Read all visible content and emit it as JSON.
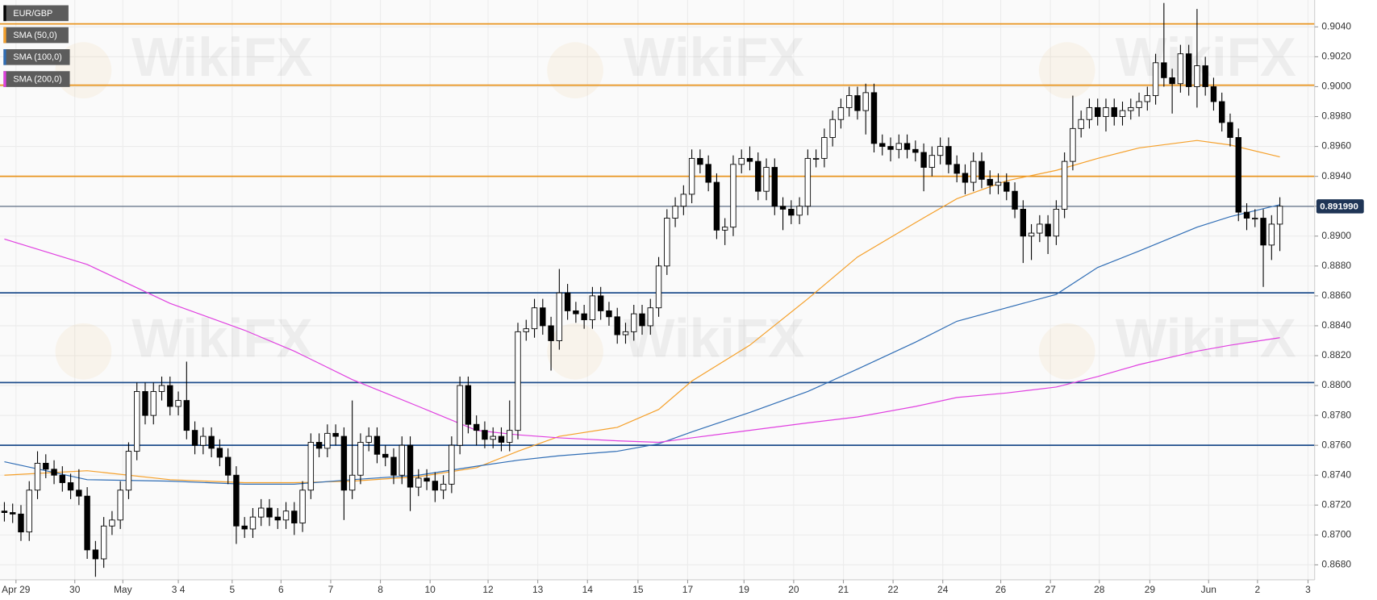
{
  "chart_data": {
    "type": "candlestick",
    "watermark": "WikiFX",
    "xlim": [
      -0.53,
      158.2
    ],
    "ylim": [
      0.867,
      0.9058
    ],
    "grid": true,
    "legend": "top-left",
    "yticks": [
      {
        "value": 0.868,
        "label": "0.8680"
      },
      {
        "value": 0.87,
        "label": "0.8700"
      },
      {
        "value": 0.872,
        "label": "0.8720"
      },
      {
        "value": 0.874,
        "label": "0.8740"
      },
      {
        "value": 0.876,
        "label": "0.8760"
      },
      {
        "value": 0.878,
        "label": "0.8780"
      },
      {
        "value": 0.88,
        "label": "0.8800"
      },
      {
        "value": 0.882,
        "label": "0.8820"
      },
      {
        "value": 0.884,
        "label": "0.8840"
      },
      {
        "value": 0.886,
        "label": "0.8860"
      },
      {
        "value": 0.888,
        "label": "0.8880"
      },
      {
        "value": 0.89,
        "label": "0.8900"
      },
      {
        "value": 0.892,
        "label": "0.8920"
      },
      {
        "value": 0.894,
        "label": "0.8940"
      },
      {
        "value": 0.896,
        "label": "0.8960"
      },
      {
        "value": 0.898,
        "label": "0.8980"
      },
      {
        "value": 0.9,
        "label": "0.9000"
      },
      {
        "value": 0.902,
        "label": "0.9020"
      },
      {
        "value": 0.904,
        "label": "0.9040"
      }
    ],
    "xticks": [
      {
        "value": 1.4,
        "label": "Apr 29"
      },
      {
        "value": 8.5,
        "label": "30"
      },
      {
        "value": 14.3,
        "label": "May"
      },
      {
        "value": 21.0,
        "label": "3 4"
      },
      {
        "value": 27.5,
        "label": "5"
      },
      {
        "value": 33.4,
        "label": "6"
      },
      {
        "value": 39.4,
        "label": "7"
      },
      {
        "value": 45.4,
        "label": "8"
      },
      {
        "value": 51.4,
        "label": "10"
      },
      {
        "value": 58.4,
        "label": "12"
      },
      {
        "value": 64.4,
        "label": "13"
      },
      {
        "value": 70.4,
        "label": "14"
      },
      {
        "value": 76.5,
        "label": "15"
      },
      {
        "value": 82.5,
        "label": "17"
      },
      {
        "value": 89.3,
        "label": "19"
      },
      {
        "value": 95.3,
        "label": "20"
      },
      {
        "value": 101.3,
        "label": "21"
      },
      {
        "value": 107.3,
        "label": "22"
      },
      {
        "value": 113.3,
        "label": "24"
      },
      {
        "value": 120.3,
        "label": "26"
      },
      {
        "value": 126.3,
        "label": "27"
      },
      {
        "value": 132.2,
        "label": "28"
      },
      {
        "value": 138.3,
        "label": "29"
      },
      {
        "value": 145.4,
        "label": "Jun"
      },
      {
        "value": 151.3,
        "label": "2"
      },
      {
        "value": 157.4,
        "label": "3"
      }
    ],
    "series": [
      {
        "name": "EUR/GBP",
        "color": "#000000",
        "up_color": "#ffffff",
        "open": [
          0.8716,
          0.8715,
          0.8714,
          0.8702,
          0.873,
          0.8748,
          0.8744,
          0.874,
          0.8735,
          0.873,
          0.8726,
          0.869,
          0.8684,
          0.8706,
          0.871,
          0.873,
          0.8756,
          0.8796,
          0.878,
          0.8796,
          0.88,
          0.8786,
          0.879,
          0.877,
          0.876,
          0.8766,
          0.8758,
          0.8752,
          0.874,
          0.8706,
          0.8704,
          0.8712,
          0.8718,
          0.8712,
          0.871,
          0.8716,
          0.8708,
          0.873,
          0.8762,
          0.8758,
          0.8768,
          0.8766,
          0.873,
          0.874,
          0.8762,
          0.8766,
          0.8754,
          0.8752,
          0.874,
          0.876,
          0.8732,
          0.8738,
          0.8736,
          0.873,
          0.8734,
          0.876,
          0.88,
          0.8774,
          0.877,
          0.8764,
          0.8766,
          0.8762,
          0.877,
          0.8836,
          0.8838,
          0.8852,
          0.884,
          0.883,
          0.8862,
          0.885,
          0.8848,
          0.8844,
          0.886,
          0.885,
          0.8846,
          0.8834,
          0.8836,
          0.8848,
          0.884,
          0.8852,
          0.888,
          0.8912,
          0.892,
          0.8928,
          0.8952,
          0.8948,
          0.8936,
          0.8904,
          0.8906,
          0.8948,
          0.8952,
          0.895,
          0.893,
          0.8946,
          0.892,
          0.8918,
          0.8914,
          0.892,
          0.8952,
          0.8952,
          0.8966,
          0.8978,
          0.8986,
          0.8994,
          0.8984,
          0.8996,
          0.8962,
          0.896,
          0.8958,
          0.8962,
          0.8958,
          0.8956,
          0.8946,
          0.8954,
          0.896,
          0.8948,
          0.8942,
          0.8936,
          0.895,
          0.8938,
          0.8934,
          0.8936,
          0.893,
          0.8918,
          0.89,
          0.8902,
          0.8908,
          0.89,
          0.8918,
          0.895,
          0.8972,
          0.8978,
          0.8986,
          0.898,
          0.8986,
          0.898,
          0.8984,
          0.8986,
          0.899,
          0.8994,
          0.9016,
          0.9006,
          0.9002,
          0.9022,
          0.9,
          0.9014,
          0.9,
          0.899,
          0.8976,
          0.8966,
          0.8916,
          0.8912,
          0.8912,
          0.8894,
          0.8908
        ],
        "high": [
          0.8722,
          0.8721,
          0.872,
          0.8736,
          0.8756,
          0.8754,
          0.875,
          0.8746,
          0.8741,
          0.8744,
          0.8732,
          0.8696,
          0.8712,
          0.8716,
          0.8736,
          0.8762,
          0.8802,
          0.8802,
          0.8802,
          0.8806,
          0.8806,
          0.8796,
          0.8816,
          0.8776,
          0.8772,
          0.8772,
          0.8764,
          0.8758,
          0.8746,
          0.8712,
          0.8718,
          0.8724,
          0.8724,
          0.8718,
          0.8722,
          0.8722,
          0.8736,
          0.8768,
          0.8768,
          0.8774,
          0.8774,
          0.8772,
          0.879,
          0.8768,
          0.8772,
          0.8772,
          0.876,
          0.8758,
          0.8766,
          0.8766,
          0.8744,
          0.8744,
          0.8742,
          0.874,
          0.8766,
          0.8806,
          0.8806,
          0.878,
          0.8776,
          0.8772,
          0.8772,
          0.879,
          0.8842,
          0.8844,
          0.8858,
          0.8858,
          0.8846,
          0.8878,
          0.8868,
          0.8856,
          0.8854,
          0.8866,
          0.8866,
          0.8856,
          0.8852,
          0.8842,
          0.8854,
          0.8854,
          0.8858,
          0.8886,
          0.8918,
          0.8926,
          0.8934,
          0.8958,
          0.8958,
          0.8954,
          0.8942,
          0.8912,
          0.8954,
          0.8958,
          0.896,
          0.8956,
          0.8952,
          0.8952,
          0.8926,
          0.8924,
          0.8926,
          0.8958,
          0.8958,
          0.8972,
          0.8984,
          0.8992,
          0.9,
          0.9,
          0.9002,
          0.9002,
          0.8968,
          0.8966,
          0.8968,
          0.8968,
          0.8964,
          0.8962,
          0.896,
          0.8966,
          0.8966,
          0.8954,
          0.8948,
          0.8956,
          0.8956,
          0.8944,
          0.8942,
          0.8942,
          0.8936,
          0.8924,
          0.8908,
          0.8914,
          0.8914,
          0.8924,
          0.8956,
          0.8994,
          0.8984,
          0.8992,
          0.8992,
          0.8992,
          0.8992,
          0.899,
          0.8992,
          0.8996,
          0.9,
          0.9022,
          0.9056,
          0.9012,
          0.9028,
          0.9028,
          0.9052,
          0.902,
          0.9006,
          0.8996,
          0.8982,
          0.8972,
          0.8922,
          0.8918,
          0.8918,
          0.8914,
          0.8926
        ],
        "low": [
          0.8709,
          0.8708,
          0.8696,
          0.8696,
          0.8724,
          0.8738,
          0.8734,
          0.8729,
          0.8724,
          0.872,
          0.8684,
          0.8672,
          0.8678,
          0.87,
          0.8704,
          0.8724,
          0.875,
          0.8774,
          0.8774,
          0.879,
          0.878,
          0.878,
          0.8764,
          0.8754,
          0.8754,
          0.8752,
          0.8746,
          0.8734,
          0.8694,
          0.8698,
          0.8698,
          0.8706,
          0.8706,
          0.8704,
          0.8704,
          0.87,
          0.8702,
          0.8724,
          0.8752,
          0.8752,
          0.876,
          0.871,
          0.8724,
          0.8734,
          0.8756,
          0.8748,
          0.8746,
          0.8734,
          0.8734,
          0.8716,
          0.8726,
          0.873,
          0.8722,
          0.8724,
          0.8728,
          0.8754,
          0.8768,
          0.876,
          0.8758,
          0.8758,
          0.8756,
          0.8756,
          0.8764,
          0.883,
          0.8832,
          0.8834,
          0.881,
          0.8824,
          0.8844,
          0.8842,
          0.8838,
          0.8838,
          0.8844,
          0.884,
          0.8828,
          0.8828,
          0.883,
          0.8834,
          0.8834,
          0.8846,
          0.8874,
          0.8906,
          0.8914,
          0.8922,
          0.8942,
          0.893,
          0.8898,
          0.8894,
          0.89,
          0.8942,
          0.8944,
          0.8924,
          0.8924,
          0.8914,
          0.8904,
          0.8908,
          0.8908,
          0.8914,
          0.8946,
          0.8946,
          0.896,
          0.8972,
          0.898,
          0.8978,
          0.8968,
          0.8956,
          0.8954,
          0.895,
          0.8952,
          0.8952,
          0.895,
          0.893,
          0.894,
          0.8948,
          0.8942,
          0.8936,
          0.8928,
          0.893,
          0.8932,
          0.8928,
          0.8928,
          0.8924,
          0.8912,
          0.8882,
          0.8884,
          0.8896,
          0.8888,
          0.8894,
          0.8912,
          0.8944,
          0.8966,
          0.8972,
          0.8974,
          0.897,
          0.8974,
          0.8974,
          0.8978,
          0.898,
          0.8984,
          0.8988,
          0.9,
          0.8982,
          0.8996,
          0.8994,
          0.8986,
          0.8994,
          0.8984,
          0.897,
          0.896,
          0.891,
          0.8904,
          0.8906,
          0.8866,
          0.8884,
          0.889
        ],
        "close": [
          0.8715,
          0.8714,
          0.8702,
          0.873,
          0.8748,
          0.8744,
          0.874,
          0.8735,
          0.873,
          0.8726,
          0.869,
          0.8684,
          0.8706,
          0.871,
          0.873,
          0.8756,
          0.8796,
          0.878,
          0.8796,
          0.88,
          0.8786,
          0.879,
          0.877,
          0.876,
          0.8766,
          0.8758,
          0.8752,
          0.874,
          0.8706,
          0.8704,
          0.8712,
          0.8718,
          0.8712,
          0.871,
          0.8716,
          0.8708,
          0.873,
          0.8762,
          0.8758,
          0.8768,
          0.8766,
          0.873,
          0.874,
          0.8762,
          0.8766,
          0.8754,
          0.8752,
          0.874,
          0.876,
          0.8732,
          0.8738,
          0.8736,
          0.873,
          0.8734,
          0.876,
          0.88,
          0.8774,
          0.877,
          0.8764,
          0.8766,
          0.8762,
          0.877,
          0.8836,
          0.8838,
          0.8852,
          0.884,
          0.883,
          0.8862,
          0.885,
          0.8848,
          0.8844,
          0.886,
          0.885,
          0.8846,
          0.8834,
          0.8836,
          0.8848,
          0.884,
          0.8852,
          0.888,
          0.8912,
          0.892,
          0.8928,
          0.8952,
          0.8948,
          0.8936,
          0.8904,
          0.8906,
          0.8948,
          0.8952,
          0.895,
          0.893,
          0.8946,
          0.892,
          0.8918,
          0.8914,
          0.892,
          0.8952,
          0.8952,
          0.8966,
          0.8978,
          0.8986,
          0.8994,
          0.8984,
          0.8996,
          0.8962,
          0.896,
          0.8958,
          0.8962,
          0.8958,
          0.8956,
          0.8946,
          0.8954,
          0.896,
          0.8948,
          0.8942,
          0.8936,
          0.895,
          0.8938,
          0.8934,
          0.8936,
          0.893,
          0.8918,
          0.89,
          0.8902,
          0.8908,
          0.89,
          0.8918,
          0.895,
          0.8972,
          0.8978,
          0.8986,
          0.898,
          0.8986,
          0.898,
          0.8984,
          0.8986,
          0.899,
          0.8994,
          0.9016,
          0.9006,
          0.9002,
          0.9022,
          0.9,
          0.9014,
          0.9,
          0.899,
          0.8976,
          0.8966,
          0.8916,
          0.8912,
          0.8912,
          0.8894,
          0.8908,
          0.892
        ]
      }
    ],
    "lines": [
      {
        "name": "SMA (50,0)",
        "color": "#f5a02a",
        "x": [
          0,
          10,
          20,
          29,
          35,
          42,
          50,
          57,
          62,
          67,
          74,
          79,
          83,
          90,
          97,
          103,
          110,
          115,
          121,
          127,
          132,
          137,
          144,
          148,
          154
        ],
        "values": [
          0.874,
          0.8743,
          0.8737,
          0.8735,
          0.8735,
          0.8736,
          0.8739,
          0.8745,
          0.8756,
          0.8766,
          0.8772,
          0.8784,
          0.8803,
          0.8827,
          0.8858,
          0.8886,
          0.8909,
          0.8925,
          0.8937,
          0.8944,
          0.8952,
          0.8959,
          0.8964,
          0.8961,
          0.8953
        ]
      },
      {
        "name": "SMA (100,0)",
        "color": "#2f6db5",
        "x": [
          0,
          10,
          20,
          29,
          35,
          42,
          50,
          57,
          62,
          67,
          74,
          79,
          83,
          90,
          97,
          103,
          110,
          115,
          121,
          127,
          132,
          137,
          144,
          148,
          154
        ],
        "values": [
          0.8749,
          0.8737,
          0.8736,
          0.8734,
          0.8734,
          0.8737,
          0.874,
          0.8746,
          0.875,
          0.8753,
          0.8756,
          0.8761,
          0.8769,
          0.8782,
          0.8796,
          0.8811,
          0.8829,
          0.8843,
          0.8852,
          0.8861,
          0.8879,
          0.889,
          0.8906,
          0.8913,
          0.8921
        ]
      },
      {
        "name": "SMA (200,0)",
        "color": "#e040e0",
        "x": [
          0,
          10,
          20,
          29,
          35,
          42,
          50,
          57,
          62,
          67,
          74,
          79,
          83,
          90,
          97,
          103,
          110,
          115,
          121,
          127,
          132,
          137,
          144,
          148,
          154
        ],
        "values": [
          0.8898,
          0.8881,
          0.8855,
          0.8837,
          0.8823,
          0.8804,
          0.8786,
          0.877,
          0.8767,
          0.8765,
          0.8763,
          0.8762,
          0.8765,
          0.877,
          0.8775,
          0.8779,
          0.8786,
          0.8792,
          0.8795,
          0.8799,
          0.8806,
          0.8814,
          0.8823,
          0.8827,
          0.8832
        ]
      }
    ],
    "levels": [
      {
        "value": 0.9042,
        "color": "#e8941e"
      },
      {
        "value": 0.9001,
        "color": "#e8941e"
      },
      {
        "value": 0.894,
        "color": "#e8941e"
      },
      {
        "value": 0.8862,
        "color": "#1f4e8c"
      },
      {
        "value": 0.8802,
        "color": "#1f4e8c"
      },
      {
        "value": 0.876,
        "color": "#1f4e8c"
      }
    ],
    "last_price": {
      "value": 0.89199,
      "label": "0.891990",
      "color": "#1f3556"
    }
  }
}
